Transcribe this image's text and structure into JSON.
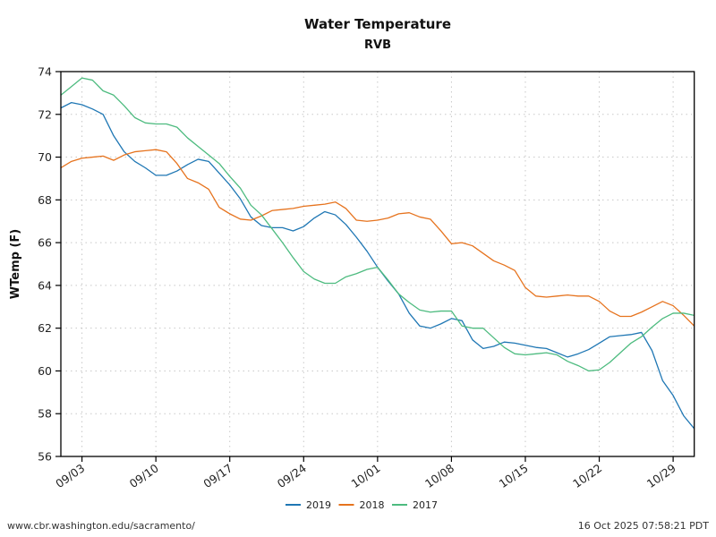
{
  "footer": {
    "source_url": "www.cbr.washington.edu/sacramento/",
    "generated": "16 Oct 2025 07:58:21 PDT"
  },
  "chart_data": {
    "type": "line",
    "title": "Water Temperature",
    "subtitle": "RVB",
    "xlabel": "",
    "ylabel": "WTemp (F)",
    "ylim": [
      56,
      74
    ],
    "yticks": [
      56,
      58,
      60,
      62,
      64,
      66,
      68,
      70,
      72,
      74
    ],
    "xlim_days": [
      0,
      60
    ],
    "x_start_date": "09/01",
    "xticks": [
      {
        "day": 2,
        "label": "09/03"
      },
      {
        "day": 9,
        "label": "09/10"
      },
      {
        "day": 16,
        "label": "09/17"
      },
      {
        "day": 23,
        "label": "09/24"
      },
      {
        "day": 30,
        "label": "10/01"
      },
      {
        "day": 37,
        "label": "10/08"
      },
      {
        "day": 44,
        "label": "10/15"
      },
      {
        "day": 51,
        "label": "10/22"
      },
      {
        "day": 58,
        "label": "10/29"
      }
    ],
    "grid": true,
    "legend_position": "bottom-center",
    "x": [
      "09/01",
      "09/02",
      "09/03",
      "09/04",
      "09/05",
      "09/06",
      "09/07",
      "09/08",
      "09/09",
      "09/10",
      "09/11",
      "09/12",
      "09/13",
      "09/14",
      "09/15",
      "09/16",
      "09/17",
      "09/18",
      "09/19",
      "09/20",
      "09/21",
      "09/22",
      "09/23",
      "09/24",
      "09/25",
      "09/26",
      "09/27",
      "09/28",
      "09/29",
      "09/30",
      "10/01",
      "10/02",
      "10/03",
      "10/04",
      "10/05",
      "10/06",
      "10/07",
      "10/08",
      "10/09",
      "10/10",
      "10/11",
      "10/12",
      "10/13",
      "10/14",
      "10/15",
      "10/16",
      "10/17",
      "10/18",
      "10/19",
      "10/20",
      "10/21",
      "10/22",
      "10/23",
      "10/24",
      "10/25",
      "10/26",
      "10/27",
      "10/28",
      "10/29",
      "10/30",
      "10/31"
    ],
    "series": [
      {
        "name": "2019",
        "color": "#1f77b4",
        "values": [
          72.3,
          72.55,
          72.45,
          72.25,
          72.0,
          71.0,
          70.25,
          69.8,
          69.5,
          69.15,
          69.15,
          69.35,
          69.65,
          69.9,
          69.8,
          69.25,
          68.7,
          68.05,
          67.2,
          66.8,
          66.7,
          66.7,
          66.55,
          66.75,
          67.15,
          67.45,
          67.3,
          66.85,
          66.25,
          65.6,
          64.85,
          64.2,
          63.6,
          62.7,
          62.1,
          62.0,
          62.2,
          62.45,
          62.35,
          61.45,
          61.05,
          61.15,
          61.35,
          61.3,
          61.2,
          61.1,
          61.05,
          60.85,
          60.65,
          60.8,
          61.0,
          61.3,
          61.6,
          61.65,
          61.7,
          61.8,
          60.95,
          59.55,
          58.85,
          57.9,
          57.3
        ]
      },
      {
        "name": "2018",
        "color": "#e6731e",
        "values": [
          69.5,
          69.8,
          69.95,
          70.0,
          70.05,
          69.85,
          70.1,
          70.25,
          70.3,
          70.35,
          70.25,
          69.7,
          69.0,
          68.8,
          68.5,
          67.65,
          67.35,
          67.1,
          67.05,
          67.25,
          67.5,
          67.55,
          67.6,
          67.7,
          67.75,
          67.8,
          67.9,
          67.6,
          67.05,
          67.0,
          67.05,
          67.15,
          67.35,
          67.4,
          67.2,
          67.1,
          66.55,
          65.95,
          66.0,
          65.85,
          65.5,
          65.15,
          64.95,
          64.7,
          63.9,
          63.5,
          63.45,
          63.5,
          63.55,
          63.5,
          63.5,
          63.25,
          62.8,
          62.55,
          62.55,
          62.75,
          63.0,
          63.25,
          63.05,
          62.6,
          62.1
        ]
      },
      {
        "name": "2017",
        "color": "#4dbb7f",
        "values": [
          72.9,
          73.3,
          73.7,
          73.6,
          73.1,
          72.9,
          72.4,
          71.85,
          71.6,
          71.55,
          71.55,
          71.4,
          70.9,
          70.5,
          70.1,
          69.7,
          69.1,
          68.55,
          67.75,
          67.3,
          66.65,
          66.0,
          65.3,
          64.65,
          64.3,
          64.1,
          64.1,
          64.4,
          64.55,
          64.75,
          64.85,
          64.25,
          63.6,
          63.2,
          62.85,
          62.75,
          62.8,
          62.8,
          62.1,
          62.0,
          62.0,
          61.55,
          61.1,
          60.8,
          60.75,
          60.8,
          60.85,
          60.75,
          60.45,
          60.25,
          60.0,
          60.05,
          60.4,
          60.85,
          61.3,
          61.6,
          62.05,
          62.45,
          62.7,
          62.7,
          62.6
        ]
      }
    ]
  }
}
